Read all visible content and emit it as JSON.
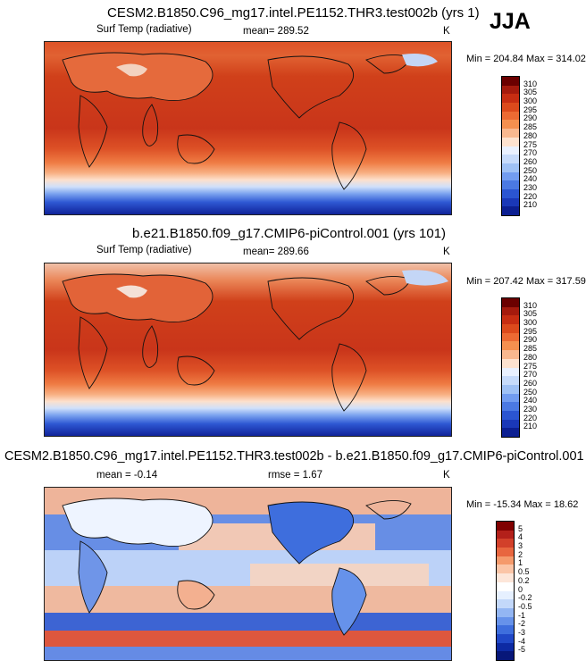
{
  "season": "JJA",
  "panels": [
    {
      "title": "CESM2.B1850.C96_mg17.intel.PE1152.THR3.test002b (yrs 1)",
      "variable": "Surf Temp (radiative)",
      "mean_label": "mean= 289.52",
      "units": "K",
      "minmax": "Min = 204.84 Max = 314.02",
      "colorbar": {
        "labels": [
          "310",
          "305",
          "300",
          "295",
          "290",
          "285",
          "280",
          "275",
          "270",
          "260",
          "250",
          "240",
          "230",
          "220",
          "210"
        ],
        "colors": [
          "#6b0000",
          "#a51a0d",
          "#c72d12",
          "#dc4a1c",
          "#ec6a33",
          "#f5904f",
          "#f9b88f",
          "#fde2cf",
          "#eaf1ff",
          "#c7dbfb",
          "#9fc1f5",
          "#729cf0",
          "#4b79e3",
          "#2b55d1",
          "#1a38b8",
          "#0c1f92"
        ]
      }
    },
    {
      "title": "b.e21.B1850.f09_g17.CMIP6-piControl.001 (yrs 101)",
      "variable": "Surf Temp (radiative)",
      "mean_label": "mean= 289.66",
      "units": "K",
      "minmax": "Min = 207.42 Max = 317.59",
      "colorbar": {
        "labels": [
          "310",
          "305",
          "300",
          "295",
          "290",
          "285",
          "280",
          "275",
          "270",
          "260",
          "250",
          "240",
          "230",
          "220",
          "210"
        ],
        "colors": [
          "#6b0000",
          "#a51a0d",
          "#c72d12",
          "#dc4a1c",
          "#ec6a33",
          "#f5904f",
          "#f9b88f",
          "#fde2cf",
          "#eaf1ff",
          "#c7dbfb",
          "#9fc1f5",
          "#729cf0",
          "#4b79e3",
          "#2b55d1",
          "#1a38b8",
          "#0c1f92"
        ]
      }
    },
    {
      "title": "CESM2.B1850.C96_mg17.intel.PE1152.THR3.test002b - b.e21.B1850.f09_g17.CMIP6-piControl.001",
      "mean_label": "mean = -0.14",
      "rmse_label": "rmse = 1.67",
      "units": "K",
      "minmax": "Min = -15.34 Max = 18.62",
      "colorbar": {
        "labels": [
          "5",
          "4",
          "3",
          "2",
          "1",
          "0.5",
          "0.2",
          "0",
          "-0.2",
          "-0.5",
          "-1",
          "-2",
          "-3",
          "-4",
          "-5"
        ],
        "colors": [
          "#800000",
          "#b3201a",
          "#d2402a",
          "#e8663f",
          "#f59a6c",
          "#fbc5a7",
          "#fde6d9",
          "#ffffff",
          "#e6f0ff",
          "#c3d8fa",
          "#93b6f3",
          "#6692ea",
          "#3e6edd",
          "#2048c7",
          "#0d2aa3",
          "#071779"
        ]
      }
    }
  ]
}
